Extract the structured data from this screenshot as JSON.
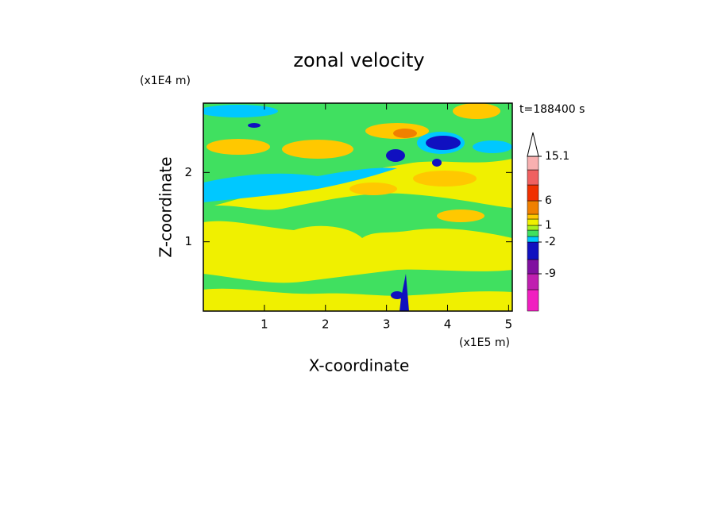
{
  "chart_data": {
    "type": "contour",
    "title": "zonal velocity",
    "x_label": "X-coordinate",
    "y_label": "Z-coordinate",
    "x_unit": "(x1E5 m)",
    "y_unit": "(x1E4 m)",
    "time_label": "t=188400 s",
    "xlim": [
      0,
      5.06
    ],
    "xticks": [
      1,
      2,
      3,
      4,
      5
    ],
    "ylim": [
      0,
      3
    ],
    "yticks": [
      1,
      2
    ],
    "colorbar": {
      "levels": [
        -16,
        -12,
        -9,
        -5,
        -2,
        -1,
        0,
        1,
        2,
        3,
        6,
        9,
        12,
        15.1
      ],
      "colors": [
        "#f020c0",
        "#c020b0",
        "#8010a0",
        "#1010c0",
        "#00c8ff",
        "#40e060",
        "#a8f020",
        "#f0f000",
        "#ffc800",
        "#f08000",
        "#f03000",
        "#f06060",
        "#f8b0b0"
      ],
      "ticks": [
        -9,
        -2,
        1,
        6,
        15.1
      ]
    }
  }
}
